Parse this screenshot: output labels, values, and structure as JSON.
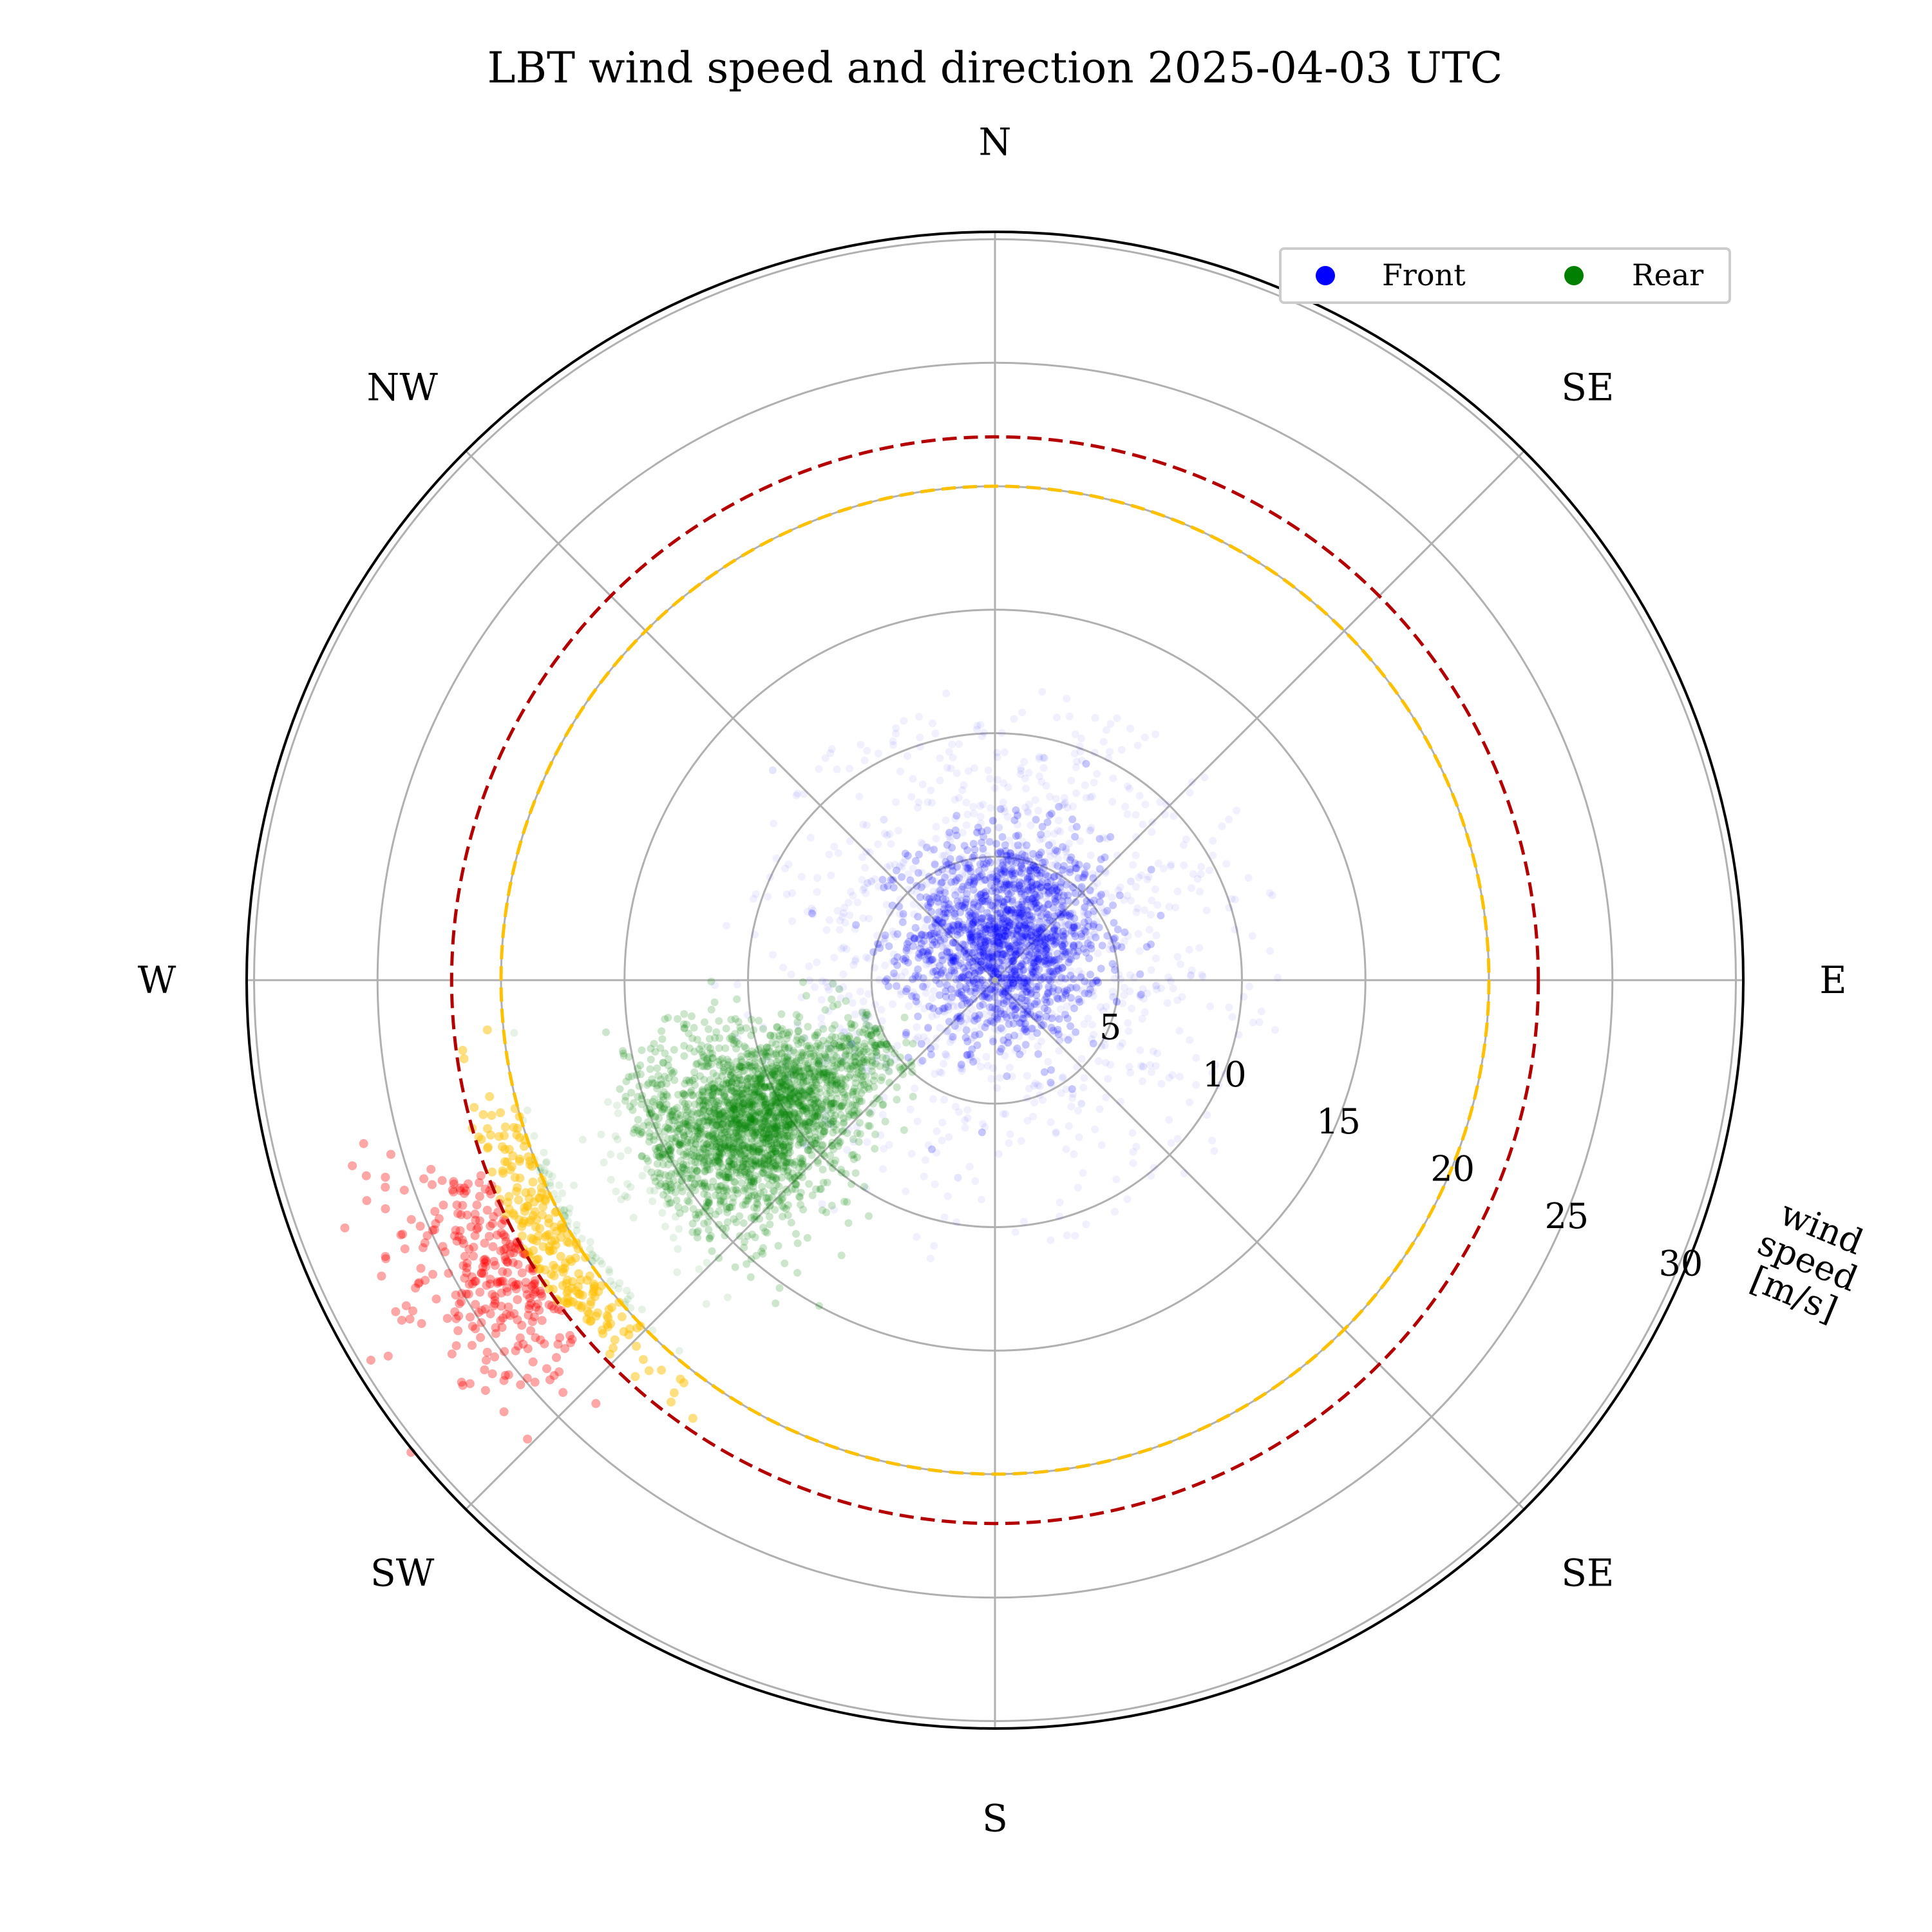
{
  "chart_data": {
    "type": "scatter",
    "projection": "polar",
    "title": "LBT wind speed and direction 2025-04-03 UTC",
    "direction_labels": [
      "N",
      "SE",
      "E",
      "SE",
      "S",
      "SW",
      "W",
      "NW"
    ],
    "radial_ticks": [
      "5",
      "10",
      "15",
      "20",
      "25",
      "30"
    ],
    "radial_tick_values": [
      5,
      10,
      15,
      20,
      25,
      30
    ],
    "radial_axis_label": [
      "wind",
      "speed",
      "[m/s]"
    ],
    "rlim": [
      0,
      30.3
    ],
    "grid": true,
    "legend": {
      "placement": "top-right",
      "entries": [
        {
          "label": "Front",
          "color": "#0000ff"
        },
        {
          "label": "Rear",
          "color": "#008000"
        }
      ]
    },
    "threshold_circles": [
      {
        "radius": 20,
        "color": "#ffc000",
        "style": "dashed"
      },
      {
        "radius": 22,
        "color": "#b40000",
        "style": "dashed"
      }
    ],
    "series": [
      {
        "name": "Front",
        "color": "#0000ff",
        "center_direction_deg": 15,
        "center_speed": 1.8,
        "spread": 2.6,
        "speed_range": [
          0,
          12
        ]
      },
      {
        "name": "Rear",
        "color": "#008000",
        "center_direction_deg": 240,
        "center_speed": 11.5,
        "direction_spread_deg": 9,
        "speed_range": [
          3,
          20
        ]
      }
    ],
    "extra_point_colors": {
      "speed_above_20": "#ffc000",
      "speed_above_22": "#ff0000"
    }
  }
}
